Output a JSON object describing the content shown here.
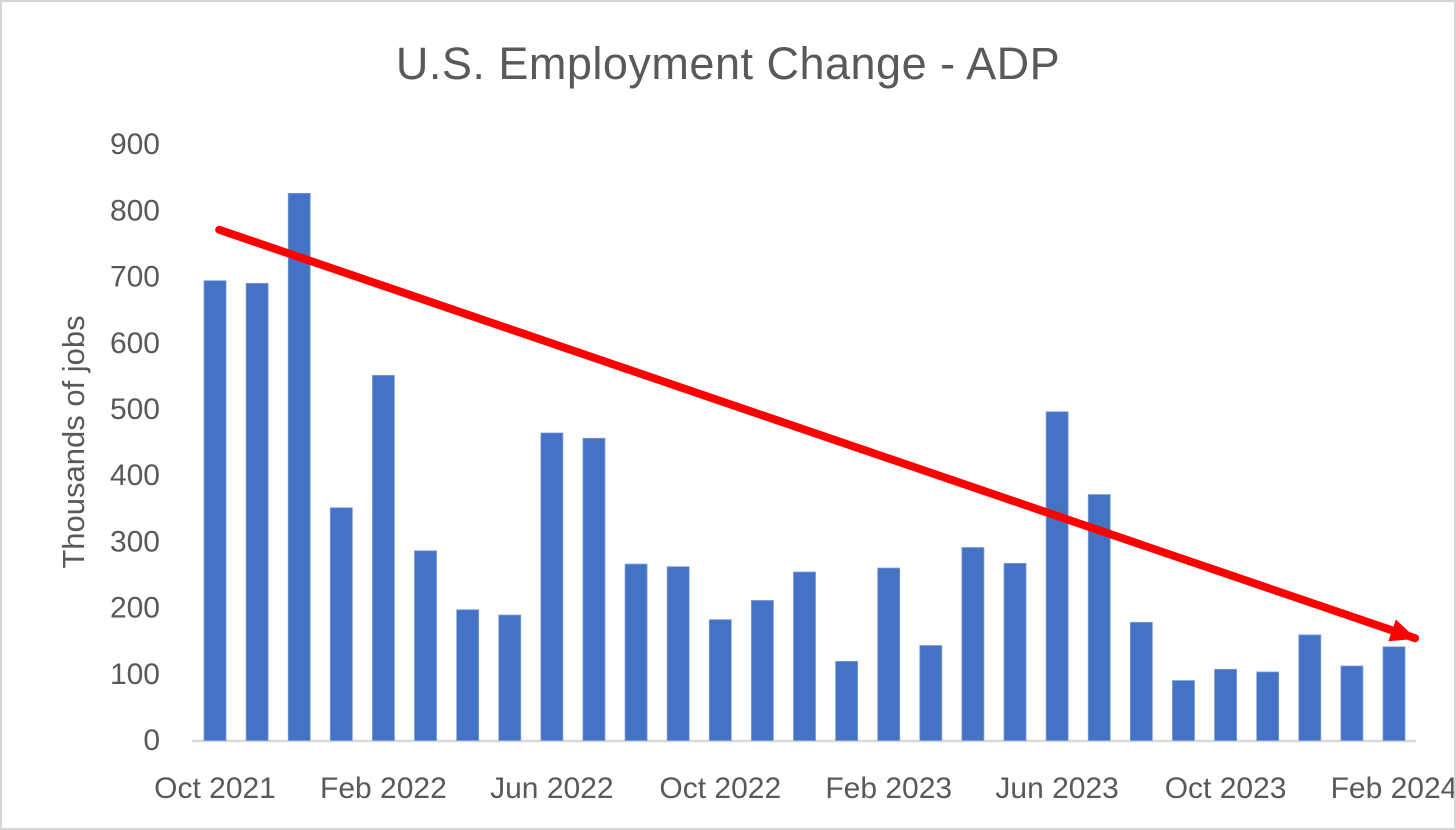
{
  "chart_data": {
    "type": "bar",
    "title": "U.S. Employment Change - ADP",
    "xlabel": "",
    "ylabel": "Thousands of jobs",
    "categories": [
      "Oct 2021",
      "Nov 2021",
      "Dec 2021",
      "Jan 2022",
      "Feb 2022",
      "Mar 2022",
      "Apr 2022",
      "May 2022",
      "Jun 2022",
      "Jul 2022",
      "Aug 2022",
      "Sep 2022",
      "Oct 2022",
      "Nov 2022",
      "Dec 2022",
      "Jan 2023",
      "Feb 2023",
      "Mar 2023",
      "Apr 2023",
      "May 2023",
      "Jun 2023",
      "Jul 2023",
      "Aug 2023",
      "Sep 2023",
      "Oct 2023",
      "Nov 2023",
      "Dec 2023",
      "Jan 2024",
      "Feb 2024"
    ],
    "values": [
      693,
      689,
      825,
      350,
      550,
      285,
      196,
      188,
      463,
      455,
      265,
      261,
      181,
      210,
      253,
      118,
      259,
      142,
      290,
      266,
      495,
      370,
      177,
      89,
      106,
      102,
      158,
      111,
      140
    ],
    "x_tick_indices": [
      0,
      4,
      8,
      12,
      16,
      20,
      24,
      28
    ],
    "x_tick_labels": [
      "Oct 2021",
      "Feb 2022",
      "Jun 2022",
      "Oct 2022",
      "Feb 2023",
      "Jun 2023",
      "Oct 2023",
      "Feb 2024"
    ],
    "y_ticks": [
      0,
      100,
      200,
      300,
      400,
      500,
      600,
      700,
      800,
      900
    ],
    "ylim": [
      0,
      900
    ],
    "grid": false,
    "legend": null,
    "units": "thousands of jobs",
    "bar_color": "#4472C4",
    "bar_edge_color": "#7C9BD6",
    "text_color": "#595959",
    "axis_line_color": "#D9D9D9",
    "annotation": {
      "type": "trend-arrow",
      "direction": "down",
      "color": "#FF0000",
      "start": {
        "month_index": 0.1,
        "value": 770
      },
      "end": {
        "month_index": 28.5,
        "value": 153
      }
    }
  }
}
